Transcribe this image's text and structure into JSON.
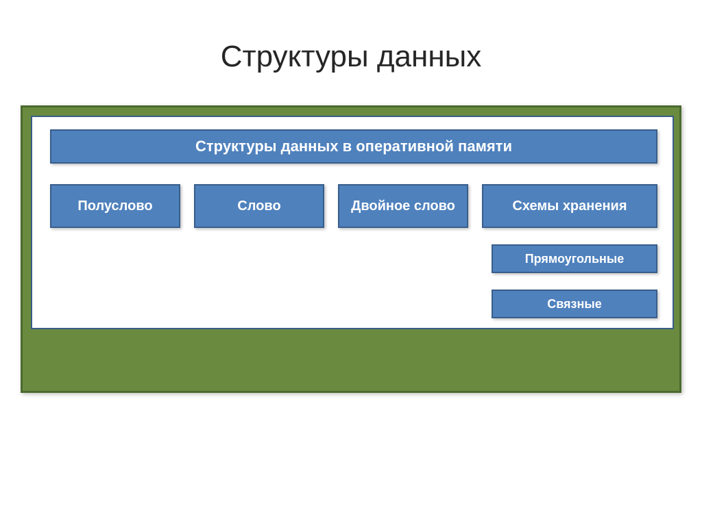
{
  "type": "infographic",
  "background_color": "#ffffff",
  "title": {
    "text": "Структуры данных",
    "color": "#262626",
    "fontsize": 44,
    "fontweight": "normal"
  },
  "frame": {
    "fill": "#6a8a3f",
    "border": "#4a6a2f",
    "inner_fill": "#ffffff",
    "inner_border": "#385d8a"
  },
  "box_style": {
    "fill": "#4f81bd",
    "border": "#385d8a",
    "text_color": "#ffffff",
    "fontweight": "bold"
  },
  "header": {
    "label": "Структуры данных в оперативной памяти",
    "fontsize": 22
  },
  "row": {
    "fontsize": 20,
    "items": [
      {
        "label": "Полуслово"
      },
      {
        "label": "Слово"
      },
      {
        "label": "Двойное слово"
      },
      {
        "label": "Схемы хранения"
      }
    ]
  },
  "sub": {
    "fontsize": 18,
    "items": [
      {
        "label": "Прямоугольные"
      },
      {
        "label": "Связные"
      }
    ]
  }
}
